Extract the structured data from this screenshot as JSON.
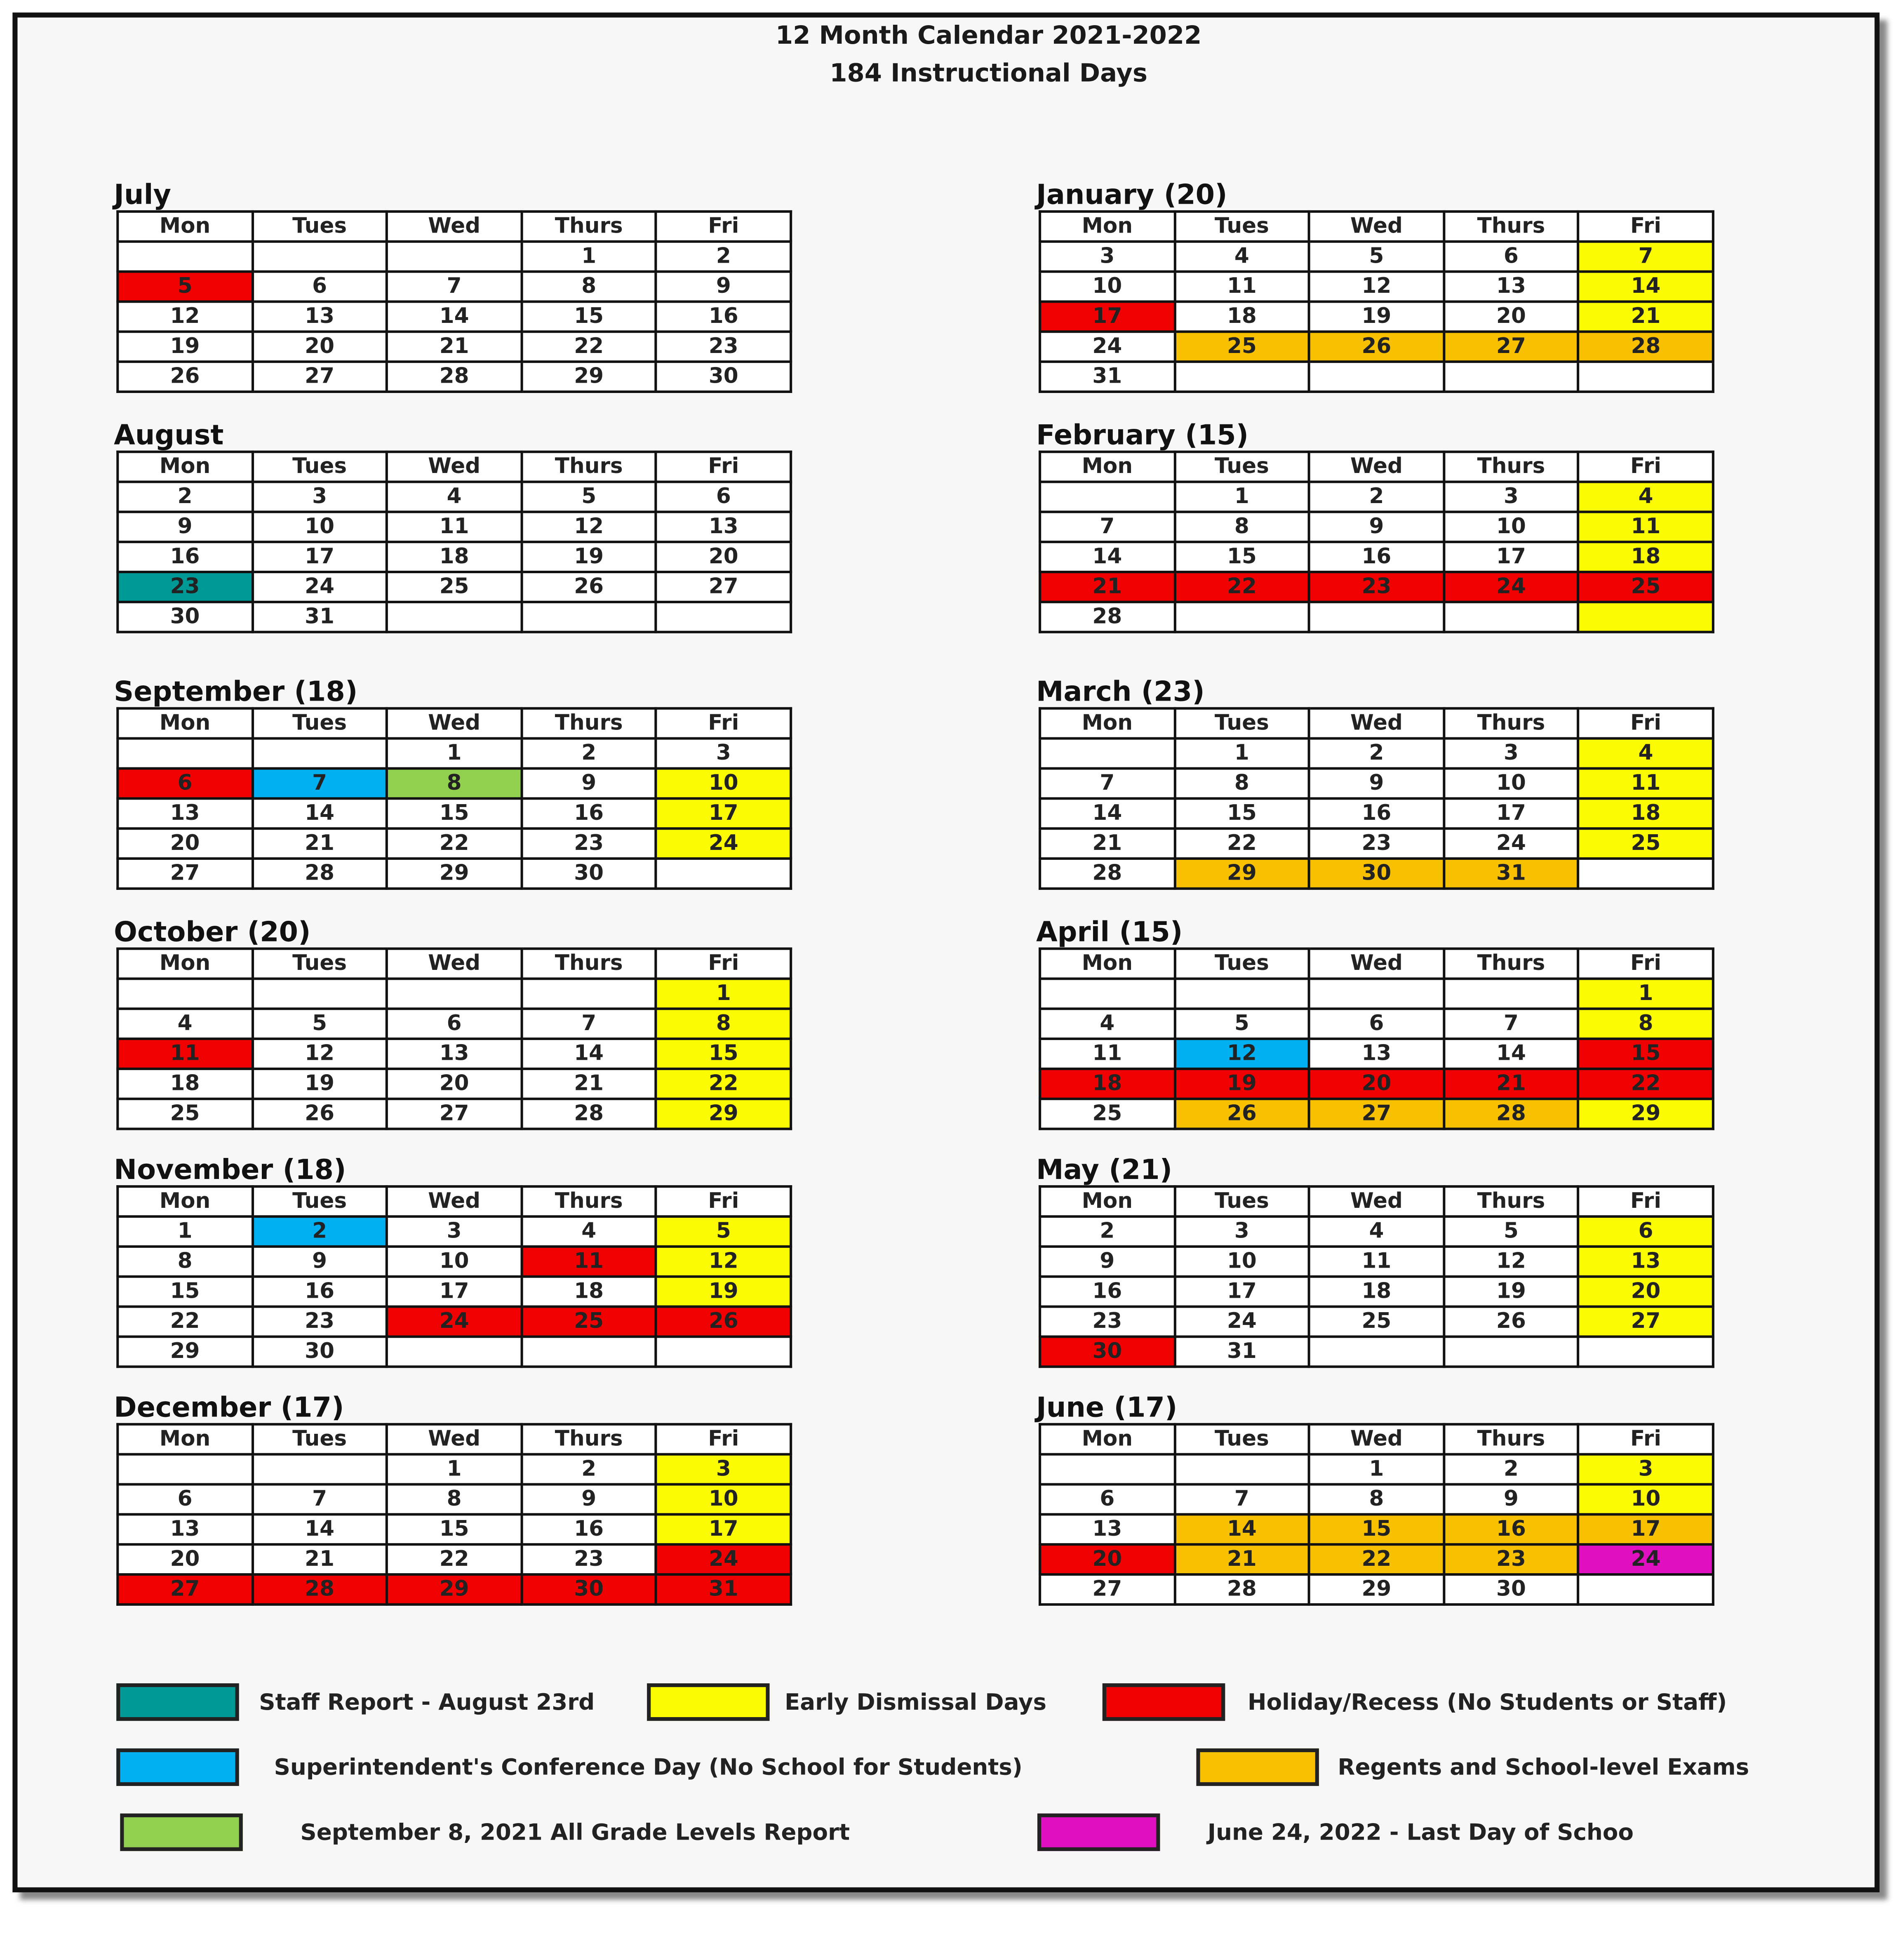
{
  "title": "12 Month Calendar 2021-2022",
  "subtitle": "184 Instructional Days",
  "weekdays": [
    "Mon",
    "Tues",
    "Wed",
    "Thurs",
    "Fri"
  ],
  "colors": {
    "R": "#f00000",
    "Y": "#fafa00",
    "O": "#f7c000",
    "B": "#00b0f0",
    "T": "#009a96",
    "G": "#92d050",
    "M": "#e010c0"
  },
  "months": [
    {
      "name": "July",
      "days": [
        [
          "",
          "",
          "",
          "1",
          "2"
        ],
        [
          "5",
          "6",
          "7",
          "8",
          "9"
        ],
        [
          "12",
          "13",
          "14",
          "15",
          "16"
        ],
        [
          "19",
          "20",
          "21",
          "22",
          "23"
        ],
        [
          "26",
          "27",
          "28",
          "29",
          "30"
        ]
      ],
      "fills": [
        "-----",
        "R----",
        "-----",
        "-----",
        "-----"
      ]
    },
    {
      "name": "August",
      "days": [
        [
          "2",
          "3",
          "4",
          "5",
          "6"
        ],
        [
          "9",
          "10",
          "11",
          "12",
          "13"
        ],
        [
          "16",
          "17",
          "18",
          "19",
          "20"
        ],
        [
          "23",
          "24",
          "25",
          "26",
          "27"
        ],
        [
          "30",
          "31",
          "",
          "",
          ""
        ]
      ],
      "fills": [
        "-----",
        "-----",
        "-----",
        "T----",
        "-----"
      ]
    },
    {
      "name": "September (18)",
      "days": [
        [
          "",
          "",
          "1",
          "2",
          "3"
        ],
        [
          "6",
          "7",
          "8",
          "9",
          "10"
        ],
        [
          "13",
          "14",
          "15",
          "16",
          "17"
        ],
        [
          "20",
          "21",
          "22",
          "23",
          "24"
        ],
        [
          "27",
          "28",
          "29",
          "30",
          ""
        ]
      ],
      "fills": [
        "-----",
        "RBG-Y",
        "----Y",
        "----Y",
        "-----"
      ]
    },
    {
      "name": "October (20)",
      "days": [
        [
          "",
          "",
          "",
          "",
          "1"
        ],
        [
          "4",
          "5",
          "6",
          "7",
          "8"
        ],
        [
          "11",
          "12",
          "13",
          "14",
          "15"
        ],
        [
          "18",
          "19",
          "20",
          "21",
          "22"
        ],
        [
          "25",
          "26",
          "27",
          "28",
          "29"
        ]
      ],
      "fills": [
        "----Y",
        "----Y",
        "R---Y",
        "----Y",
        "----Y"
      ]
    },
    {
      "name": "November (18)",
      "days": [
        [
          "1",
          "2",
          "3",
          "4",
          "5"
        ],
        [
          "8",
          "9",
          "10",
          "11",
          "12"
        ],
        [
          "15",
          "16",
          "17",
          "18",
          "19"
        ],
        [
          "22",
          "23",
          "24",
          "25",
          "26"
        ],
        [
          "29",
          "30",
          "",
          "",
          ""
        ]
      ],
      "fills": [
        "-B--Y",
        "---RY",
        "----Y",
        "--RRR",
        "-----"
      ]
    },
    {
      "name": "December (17)",
      "days": [
        [
          "",
          "",
          "1",
          "2",
          "3"
        ],
        [
          "6",
          "7",
          "8",
          "9",
          "10"
        ],
        [
          "13",
          "14",
          "15",
          "16",
          "17"
        ],
        [
          "20",
          "21",
          "22",
          "23",
          "24"
        ],
        [
          "27",
          "28",
          "29",
          "30",
          "31"
        ]
      ],
      "fills": [
        "----Y",
        "----Y",
        "----Y",
        "----R",
        "RRRRR"
      ]
    },
    {
      "name": "January (20)",
      "days": [
        [
          "3",
          "4",
          "5",
          "6",
          "7"
        ],
        [
          "10",
          "11",
          "12",
          "13",
          "14"
        ],
        [
          "17",
          "18",
          "19",
          "20",
          "21"
        ],
        [
          "24",
          "25",
          "26",
          "27",
          "28"
        ],
        [
          "31",
          "",
          "",
          "",
          ""
        ]
      ],
      "fills": [
        "----Y",
        "----Y",
        "R---Y",
        "-OOOO",
        "-----"
      ]
    },
    {
      "name": "February (15)",
      "days": [
        [
          "",
          "1",
          "2",
          "3",
          "4"
        ],
        [
          "7",
          "8",
          "9",
          "10",
          "11"
        ],
        [
          "14",
          "15",
          "16",
          "17",
          "18"
        ],
        [
          "21",
          "22",
          "23",
          "24",
          "25"
        ],
        [
          "28",
          "",
          "",
          "",
          ""
        ]
      ],
      "fills": [
        "----Y",
        "----Y",
        "----Y",
        "RRRRR",
        "----Y"
      ]
    },
    {
      "name": "March (23)",
      "days": [
        [
          "",
          "1",
          "2",
          "3",
          "4"
        ],
        [
          "7",
          "8",
          "9",
          "10",
          "11"
        ],
        [
          "14",
          "15",
          "16",
          "17",
          "18"
        ],
        [
          "21",
          "22",
          "23",
          "24",
          "25"
        ],
        [
          "28",
          "29",
          "30",
          "31",
          ""
        ]
      ],
      "fills": [
        "----Y",
        "----Y",
        "----Y",
        "----Y",
        "-OOO-"
      ]
    },
    {
      "name": "April (15)",
      "days": [
        [
          "",
          "",
          "",
          "",
          "1"
        ],
        [
          "4",
          "5",
          "6",
          "7",
          "8"
        ],
        [
          "11",
          "12",
          "13",
          "14",
          "15"
        ],
        [
          "18",
          "19",
          "20",
          "21",
          "22"
        ],
        [
          "25",
          "26",
          "27",
          "28",
          "29"
        ]
      ],
      "fills": [
        "----Y",
        "----Y",
        "-B--R",
        "RRRRR",
        "-OOOY"
      ]
    },
    {
      "name": "May (21)",
      "days": [
        [
          "2",
          "3",
          "4",
          "5",
          "6"
        ],
        [
          "9",
          "10",
          "11",
          "12",
          "13"
        ],
        [
          "16",
          "17",
          "18",
          "19",
          "20"
        ],
        [
          "23",
          "24",
          "25",
          "26",
          "27"
        ],
        [
          "30",
          "31",
          "",
          "",
          ""
        ]
      ],
      "fills": [
        "----Y",
        "----Y",
        "----Y",
        "----Y",
        "R----"
      ]
    },
    {
      "name": "June (17)",
      "days": [
        [
          "",
          "",
          "1",
          "2",
          "3"
        ],
        [
          "6",
          "7",
          "8",
          "9",
          "10"
        ],
        [
          "13",
          "14",
          "15",
          "16",
          "17"
        ],
        [
          "20",
          "21",
          "22",
          "23",
          "24"
        ],
        [
          "27",
          "28",
          "29",
          "30",
          ""
        ]
      ],
      "fills": [
        "----Y",
        "----Y",
        "-OOOO",
        "ROOOM",
        "-----"
      ]
    }
  ],
  "legend": [
    {
      "label": "Staff Report - August 23rd",
      "color": "T"
    },
    {
      "label": "Early Dismissal Days",
      "color": "Y"
    },
    {
      "label": "Holiday/Recess (No Students or Staff)",
      "color": "R"
    },
    {
      "label": "Superintendent's Conference Day (No School for Students)",
      "color": "B"
    },
    {
      "label": "Regents and School-level Exams",
      "color": "O"
    },
    {
      "label": "September 8, 2021 All Grade Levels Report",
      "color": "G"
    },
    {
      "label": "June 24, 2022 - Last Day of Schoo",
      "color": "M"
    }
  ]
}
